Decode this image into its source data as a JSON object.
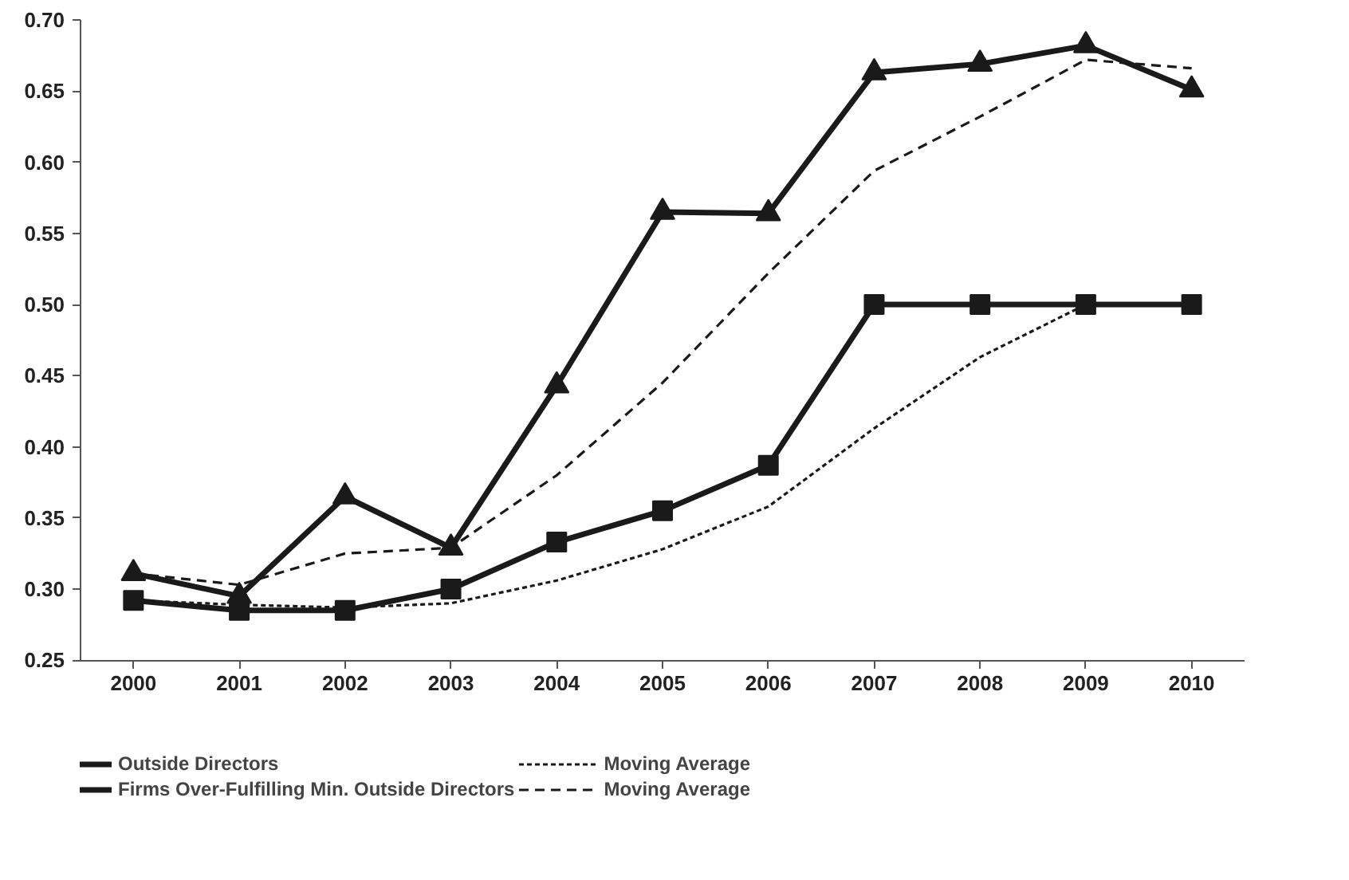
{
  "chart_data": {
    "type": "line",
    "categories": [
      "2000",
      "2001",
      "2002",
      "2003",
      "2004",
      "2005",
      "2006",
      "2007",
      "2008",
      "2009",
      "2010"
    ],
    "ylim": [
      0.25,
      0.7
    ],
    "yticks": [
      {
        "value": 0.25,
        "label": "0.25"
      },
      {
        "value": 0.3,
        "label": "0.30"
      },
      {
        "value": 0.35,
        "label": "0.35"
      },
      {
        "value": 0.4,
        "label": "0.40"
      },
      {
        "value": 0.45,
        "label": "0.45"
      },
      {
        "value": 0.5,
        "label": "0.50"
      },
      {
        "value": 0.55,
        "label": "0.55"
      },
      {
        "value": 0.6,
        "label": "0.60"
      },
      {
        "value": 0.65,
        "label": "0.65"
      },
      {
        "value": 0.7,
        "label": "0.70"
      }
    ],
    "grid": false,
    "legend": "bottom",
    "series": [
      {
        "name": "Outside Directors",
        "color": "#1a1a1a",
        "marker": "square",
        "line_style": "solid",
        "values": [
          0.292,
          0.285,
          0.285,
          0.3,
          0.333,
          0.355,
          0.387,
          0.5,
          0.5,
          0.5,
          0.5
        ]
      },
      {
        "name": "Firms Over-Fulfilling Min. Outside Directors",
        "color": "#1a1a1a",
        "marker": "triangle",
        "line_style": "solid",
        "values": [
          0.311,
          0.295,
          0.365,
          0.329,
          0.443,
          0.565,
          0.564,
          0.663,
          0.669,
          0.682,
          0.651
        ]
      },
      {
        "name": "Moving Average",
        "color": "#1a1a1a",
        "marker": "none",
        "line_style": "dotted",
        "values": [
          0.292,
          0.289,
          0.287,
          0.29,
          0.306,
          0.328,
          0.358,
          0.413,
          0.463,
          0.5,
          0.5
        ]
      },
      {
        "name": "Moving Average",
        "color": "#1a1a1a",
        "marker": "none",
        "line_style": "dashed",
        "values": [
          0.311,
          0.303,
          0.325,
          0.329,
          0.38,
          0.445,
          0.522,
          0.594,
          0.632,
          0.672,
          0.666
        ]
      }
    ]
  }
}
